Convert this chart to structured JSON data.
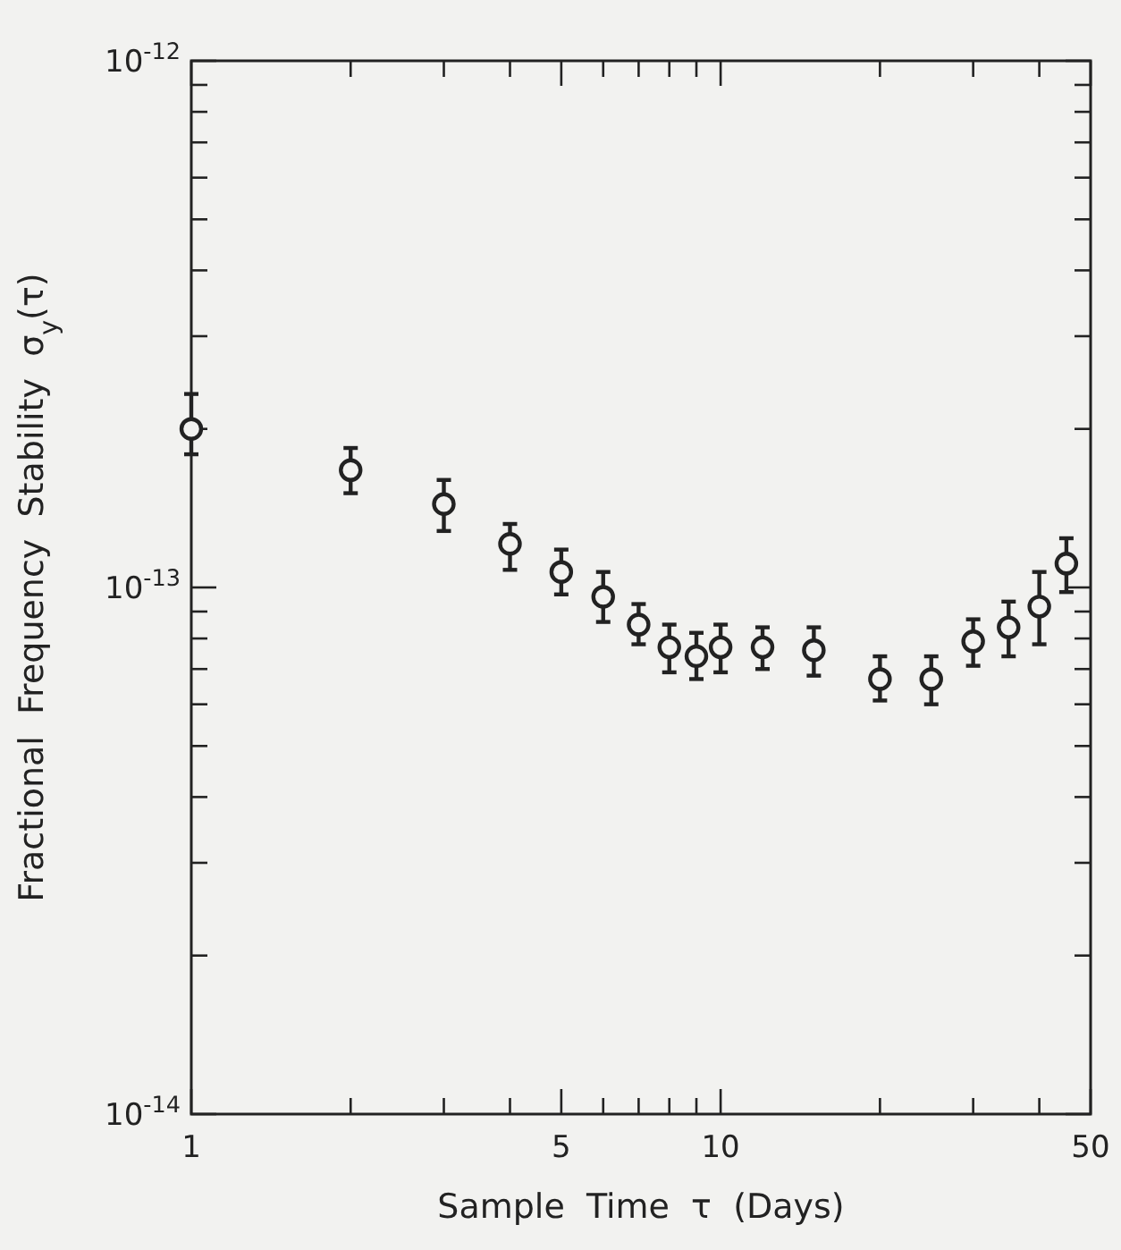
{
  "chart_data": {
    "type": "scatter",
    "xlabel": "Sample  Time  τ  (Days)",
    "ylabel": "Fractional  Frequency  Stability  σ$_{y}$(τ)",
    "log": "xy",
    "grid": false,
    "marker": "circle",
    "xlim": [
      1,
      50
    ],
    "ylim": [
      1e-14,
      1e-12
    ],
    "xticks": [
      1,
      {
        "value": 2,
        "label": null
      },
      {
        "value": 3,
        "label": null
      },
      {
        "value": 4,
        "label": null
      },
      5,
      {
        "value": 6,
        "label": null
      },
      {
        "value": 7,
        "label": null
      },
      {
        "value": 8,
        "label": null
      },
      {
        "value": 9,
        "label": null
      },
      10,
      {
        "value": 20,
        "label": null
      },
      {
        "value": 30,
        "label": null
      },
      {
        "value": 40,
        "label": null
      },
      50
    ],
    "yticks": [
      {
        "value": 1e-14,
        "label": "10$^{-14}$"
      },
      {
        "value": 2e-14,
        "label": null
      },
      {
        "value": 3e-14,
        "label": null
      },
      {
        "value": 4e-14,
        "label": null
      },
      {
        "value": 5e-14,
        "label": null
      },
      {
        "value": 6e-14,
        "label": null
      },
      {
        "value": 7e-14,
        "label": null
      },
      {
        "value": 8e-14,
        "label": null
      },
      {
        "value": 9e-14,
        "label": null
      },
      {
        "value": 1e-13,
        "label": "10$^{-13}$"
      },
      {
        "value": 2e-13,
        "label": null
      },
      {
        "value": 3e-13,
        "label": null
      },
      {
        "value": 4e-13,
        "label": null
      },
      {
        "value": 5e-13,
        "label": null
      },
      {
        "value": 6e-13,
        "label": null
      },
      {
        "value": 7e-13,
        "label": null
      },
      {
        "value": 8e-13,
        "label": null
      },
      {
        "value": 9e-13,
        "label": null
      },
      {
        "value": 1e-12,
        "label": "10$^{-12}$"
      }
    ],
    "x": [
      1,
      2,
      3,
      4,
      5,
      6,
      7,
      8,
      9,
      10,
      12,
      15,
      20,
      25,
      30,
      35,
      40,
      45
    ],
    "series": [
      {
        "color": "#222222",
        "values": [
          2e-13,
          1.67e-13,
          1.44e-13,
          1.21e-13,
          1.07e-13,
          9.6e-14,
          8.5e-14,
          7.7e-14,
          7.4e-14,
          7.7e-14,
          7.7e-14,
          7.6e-14,
          6.7e-14,
          6.7e-14,
          7.9e-14,
          8.4e-14,
          9.2e-14,
          1.11e-13
        ],
        "errors": [
          [
            1.79e-13,
            2.33e-13
          ],
          [
            1.51e-13,
            1.84e-13
          ],
          [
            1.28e-13,
            1.6e-13
          ],
          [
            1.08e-13,
            1.32e-13
          ],
          [
            9.7e-14,
            1.18e-13
          ],
          [
            8.6e-14,
            1.07e-13
          ],
          [
            7.8e-14,
            9.3e-14
          ],
          [
            6.9e-14,
            8.5e-14
          ],
          [
            6.7e-14,
            8.2e-14
          ],
          [
            6.9e-14,
            8.5e-14
          ],
          [
            7e-14,
            8.4e-14
          ],
          [
            6.8e-14,
            8.4e-14
          ],
          [
            6.1e-14,
            7.4e-14
          ],
          [
            6e-14,
            7.4e-14
          ],
          [
            7.1e-14,
            8.7e-14
          ],
          [
            7.4e-14,
            9.4e-14
          ],
          [
            7.8e-14,
            1.07e-13
          ],
          [
            9.8e-14,
            1.24e-13
          ]
        ]
      }
    ]
  }
}
